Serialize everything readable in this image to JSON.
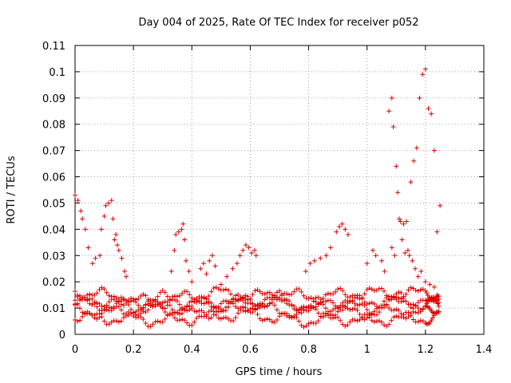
{
  "chart_data": {
    "type": "scatter",
    "title": "Day 004 of 2025, Rate Of TEC Index for receiver p052",
    "xlabel": "GPS time / hours",
    "ylabel": "ROTI / TECUs",
    "xlim": [
      0,
      1.4
    ],
    "ylim": [
      0,
      0.11
    ],
    "grid": true,
    "x_ticks": [
      0,
      0.2,
      0.4,
      0.6,
      0.8,
      1,
      1.2,
      1.4
    ],
    "x_tick_labels": [
      "0",
      "0.2",
      "0.4",
      "0.6",
      "0.8",
      "1",
      "1.2",
      "1.4"
    ],
    "y_ticks": [
      0,
      0.01,
      0.02,
      0.03,
      0.04,
      0.05,
      0.06,
      0.07,
      0.08,
      0.09,
      0.1,
      0.11
    ],
    "y_tick_labels": [
      "0",
      "0.01",
      "0.02",
      "0.03",
      "0.04",
      "0.05",
      "0.06",
      "0.07",
      "0.08",
      "0.09",
      "0.1",
      "0.11"
    ],
    "marker": "+",
    "marker_color": "#dd0000",
    "series": [
      {
        "name": "ROTI",
        "points": [
          [
            0.0,
            0.053
          ],
          [
            0.01,
            0.051
          ],
          [
            0.02,
            0.047
          ],
          [
            0.025,
            0.044
          ],
          [
            0.035,
            0.04
          ],
          [
            0.045,
            0.033
          ],
          [
            0.06,
            0.027
          ],
          [
            0.07,
            0.029
          ],
          [
            0.085,
            0.03
          ],
          [
            0.09,
            0.04
          ],
          [
            0.1,
            0.045
          ],
          [
            0.105,
            0.049
          ],
          [
            0.115,
            0.05
          ],
          [
            0.125,
            0.051
          ],
          [
            0.13,
            0.044
          ],
          [
            0.135,
            0.036
          ],
          [
            0.14,
            0.038
          ],
          [
            0.145,
            0.034
          ],
          [
            0.15,
            0.032
          ],
          [
            0.16,
            0.029
          ],
          [
            0.17,
            0.024
          ],
          [
            0.175,
            0.022
          ],
          [
            0.33,
            0.024
          ],
          [
            0.34,
            0.032
          ],
          [
            0.345,
            0.038
          ],
          [
            0.355,
            0.039
          ],
          [
            0.365,
            0.04
          ],
          [
            0.37,
            0.042
          ],
          [
            0.375,
            0.036
          ],
          [
            0.38,
            0.028
          ],
          [
            0.39,
            0.024
          ],
          [
            0.4,
            0.02
          ],
          [
            0.43,
            0.025
          ],
          [
            0.44,
            0.027
          ],
          [
            0.45,
            0.023
          ],
          [
            0.46,
            0.028
          ],
          [
            0.47,
            0.03
          ],
          [
            0.48,
            0.026
          ],
          [
            0.5,
            0.019
          ],
          [
            0.52,
            0.022
          ],
          [
            0.54,
            0.025
          ],
          [
            0.555,
            0.027
          ],
          [
            0.565,
            0.03
          ],
          [
            0.575,
            0.032
          ],
          [
            0.585,
            0.034
          ],
          [
            0.595,
            0.033
          ],
          [
            0.605,
            0.031
          ],
          [
            0.615,
            0.032
          ],
          [
            0.62,
            0.03
          ],
          [
            0.79,
            0.024
          ],
          [
            0.805,
            0.027
          ],
          [
            0.82,
            0.028
          ],
          [
            0.84,
            0.029
          ],
          [
            0.86,
            0.03
          ],
          [
            0.875,
            0.033
          ],
          [
            0.895,
            0.039
          ],
          [
            0.905,
            0.041
          ],
          [
            0.915,
            0.042
          ],
          [
            0.925,
            0.04
          ],
          [
            0.935,
            0.038
          ],
          [
            1.0,
            0.027
          ],
          [
            1.02,
            0.032
          ],
          [
            1.03,
            0.03
          ],
          [
            1.05,
            0.028
          ],
          [
            1.06,
            0.024
          ],
          [
            1.075,
            0.085
          ],
          [
            1.085,
            0.09
          ],
          [
            1.09,
            0.079
          ],
          [
            1.1,
            0.064
          ],
          [
            1.105,
            0.054
          ],
          [
            1.11,
            0.044
          ],
          [
            1.115,
            0.043
          ],
          [
            1.125,
            0.042
          ],
          [
            1.135,
            0.043
          ],
          [
            1.14,
            0.032
          ],
          [
            1.15,
            0.058
          ],
          [
            1.16,
            0.066
          ],
          [
            1.17,
            0.071
          ],
          [
            1.18,
            0.09
          ],
          [
            1.19,
            0.099
          ],
          [
            1.2,
            0.101
          ],
          [
            1.21,
            0.086
          ],
          [
            1.22,
            0.084
          ],
          [
            1.23,
            0.07
          ],
          [
            1.24,
            0.039
          ],
          [
            1.25,
            0.049
          ],
          [
            1.085,
            0.033
          ],
          [
            1.095,
            0.03
          ],
          [
            1.12,
            0.036
          ],
          [
            1.13,
            0.031
          ],
          [
            1.145,
            0.03
          ],
          [
            1.155,
            0.028
          ],
          [
            1.165,
            0.025
          ],
          [
            1.175,
            0.022
          ],
          [
            1.185,
            0.024
          ],
          [
            1.2,
            0.02
          ],
          [
            1.215,
            0.019
          ],
          [
            1.23,
            0.018
          ],
          [
            1.24,
            0.015
          ],
          [
            1.245,
            0.012
          ]
        ],
        "dense_band": {
          "description": "dense overlapping traces between 0.0 and 1.25 hours",
          "x_range": [
            0.0,
            1.25
          ],
          "traces": [
            [
              [
                0.0,
                0.013
              ],
              [
                0.1,
                0.011
              ],
              [
                0.2,
                0.012
              ],
              [
                0.3,
                0.014
              ],
              [
                0.4,
                0.012
              ],
              [
                0.5,
                0.011
              ],
              [
                0.6,
                0.013
              ],
              [
                0.7,
                0.012
              ],
              [
                0.8,
                0.011
              ],
              [
                0.9,
                0.013
              ],
              [
                1.0,
                0.012
              ],
              [
                1.1,
                0.014
              ],
              [
                1.2,
                0.011
              ],
              [
                1.25,
                0.012
              ]
            ],
            [
              [
                0.0,
                0.009
              ],
              [
                0.1,
                0.008
              ],
              [
                0.2,
                0.009
              ],
              [
                0.3,
                0.01
              ],
              [
                0.4,
                0.008
              ],
              [
                0.5,
                0.009
              ],
              [
                0.6,
                0.011
              ],
              [
                0.7,
                0.009
              ],
              [
                0.8,
                0.008
              ],
              [
                0.9,
                0.009
              ],
              [
                1.0,
                0.008
              ],
              [
                1.1,
                0.009
              ],
              [
                1.2,
                0.008
              ],
              [
                1.25,
                0.009
              ]
            ],
            [
              [
                0.0,
                0.016
              ],
              [
                0.1,
                0.015
              ],
              [
                0.2,
                0.013
              ],
              [
                0.3,
                0.012
              ],
              [
                0.4,
                0.015
              ],
              [
                0.5,
                0.016
              ],
              [
                0.6,
                0.014
              ],
              [
                0.7,
                0.016
              ],
              [
                0.8,
                0.014
              ],
              [
                0.9,
                0.015
              ],
              [
                1.0,
                0.016
              ],
              [
                1.1,
                0.015
              ],
              [
                1.2,
                0.016
              ],
              [
                1.25,
                0.015
              ]
            ],
            [
              [
                0.0,
                0.007
              ],
              [
                0.1,
                0.006
              ],
              [
                0.2,
                0.006
              ],
              [
                0.3,
                0.005
              ],
              [
                0.4,
                0.006
              ],
              [
                0.5,
                0.007
              ],
              [
                0.6,
                0.008
              ],
              [
                0.7,
                0.006
              ],
              [
                0.8,
                0.005
              ],
              [
                0.9,
                0.006
              ],
              [
                1.0,
                0.005
              ],
              [
                1.1,
                0.006
              ],
              [
                1.2,
                0.006
              ],
              [
                1.25,
                0.007
              ]
            ],
            [
              [
                0.0,
                0.011
              ],
              [
                0.1,
                0.013
              ],
              [
                0.2,
                0.01
              ],
              [
                0.3,
                0.011
              ],
              [
                0.4,
                0.01
              ],
              [
                0.5,
                0.013
              ],
              [
                0.6,
                0.012
              ],
              [
                0.7,
                0.014
              ],
              [
                0.8,
                0.009
              ],
              [
                0.9,
                0.011
              ],
              [
                1.0,
                0.01
              ],
              [
                1.1,
                0.012
              ],
              [
                1.2,
                0.013
              ],
              [
                1.25,
                0.01
              ]
            ]
          ]
        }
      }
    ]
  }
}
